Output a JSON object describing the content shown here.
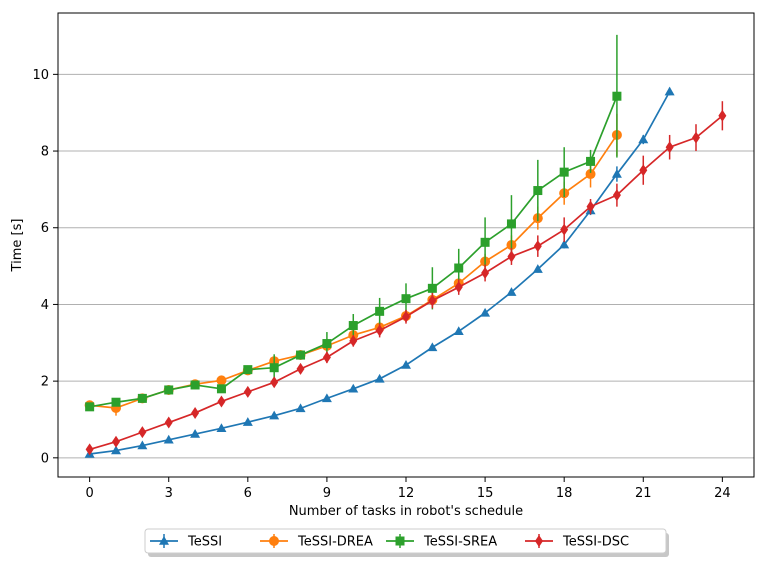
{
  "chart_data": {
    "type": "line",
    "xlabel": "Number of tasks in robot's schedule",
    "ylabel": "Time [s]",
    "xlim": [
      -1.2,
      25.2
    ],
    "ylim": [
      -0.5,
      11.6
    ],
    "xticks": [
      0,
      3,
      6,
      9,
      12,
      15,
      18,
      21,
      24
    ],
    "yticks": [
      0,
      2,
      4,
      6,
      8,
      10
    ],
    "grid": "horizontal",
    "legend_position": "bottom-center",
    "series": [
      {
        "name": "TeSSI",
        "color": "#1f77b4",
        "marker": "triangle",
        "x": [
          0,
          1,
          2,
          3,
          4,
          5,
          6,
          7,
          8,
          9,
          10,
          11,
          12,
          13,
          14,
          15,
          16,
          17,
          18,
          19,
          20,
          21,
          22
        ],
        "y": [
          0.1,
          0.19,
          0.32,
          0.47,
          0.62,
          0.77,
          0.93,
          1.1,
          1.29,
          1.55,
          1.8,
          2.06,
          2.42,
          2.88,
          3.3,
          3.78,
          4.32,
          4.92,
          5.56,
          6.45,
          7.4,
          8.3,
          9.55
        ],
        "err": [
          0.02,
          0.02,
          0.02,
          0.03,
          0.03,
          0.03,
          0.03,
          0.04,
          0.04,
          0.05,
          0.05,
          0.06,
          0.06,
          0.07,
          0.07,
          0.08,
          0.08,
          0.09,
          0.1,
          0.12,
          0.2,
          0.12,
          0.1
        ]
      },
      {
        "name": "TeSSI-DREA",
        "color": "#ff7f0e",
        "marker": "circle",
        "x": [
          0,
          1,
          2,
          3,
          4,
          5,
          6,
          7,
          8,
          9,
          10,
          11,
          12,
          13,
          14,
          15,
          16,
          17,
          18,
          19,
          20
        ],
        "y": [
          1.37,
          1.3,
          1.55,
          1.77,
          1.92,
          2.02,
          2.28,
          2.52,
          2.68,
          2.92,
          3.2,
          3.4,
          3.7,
          4.12,
          4.55,
          5.12,
          5.55,
          6.25,
          6.9,
          7.4,
          8.42
        ],
        "err": [
          0.05,
          0.2,
          0.08,
          0.06,
          0.06,
          0.08,
          0.1,
          0.12,
          0.1,
          0.12,
          0.15,
          0.15,
          0.15,
          0.18,
          0.2,
          0.2,
          0.25,
          0.3,
          0.3,
          0.35,
          0.55
        ]
      },
      {
        "name": "TeSSI-SREA",
        "color": "#2ca02c",
        "marker": "square",
        "x": [
          0,
          1,
          2,
          3,
          4,
          5,
          6,
          7,
          8,
          9,
          10,
          11,
          12,
          13,
          14,
          15,
          16,
          17,
          18,
          19,
          20
        ],
        "y": [
          1.33,
          1.45,
          1.55,
          1.77,
          1.9,
          1.8,
          2.3,
          2.35,
          2.68,
          2.98,
          3.45,
          3.82,
          4.15,
          4.42,
          4.95,
          5.62,
          6.1,
          6.97,
          7.45,
          7.73,
          9.43
        ],
        "err": [
          0.05,
          0.05,
          0.06,
          0.06,
          0.08,
          0.1,
          0.1,
          0.35,
          0.1,
          0.3,
          0.3,
          0.35,
          0.4,
          0.55,
          0.5,
          0.65,
          0.75,
          0.8,
          0.65,
          0.3,
          1.6
        ]
      },
      {
        "name": "TeSSI-DSC",
        "color": "#d62728",
        "marker": "diamond",
        "x": [
          0,
          1,
          2,
          3,
          4,
          5,
          6,
          7,
          8,
          9,
          10,
          11,
          12,
          13,
          14,
          15,
          16,
          17,
          18,
          19,
          20,
          21,
          22,
          23,
          24
        ],
        "y": [
          0.22,
          0.42,
          0.67,
          0.92,
          1.17,
          1.47,
          1.72,
          1.97,
          2.32,
          2.62,
          3.05,
          3.32,
          3.68,
          4.1,
          4.45,
          4.82,
          5.25,
          5.52,
          5.95,
          6.55,
          6.85,
          7.5,
          8.1,
          8.35,
          8.92
        ],
        "err": [
          0.06,
          0.06,
          0.07,
          0.07,
          0.08,
          0.1,
          0.1,
          0.12,
          0.12,
          0.15,
          0.15,
          0.18,
          0.18,
          0.2,
          0.2,
          0.22,
          0.22,
          0.28,
          0.32,
          0.2,
          0.3,
          0.38,
          0.32,
          0.35,
          0.38
        ]
      }
    ]
  }
}
